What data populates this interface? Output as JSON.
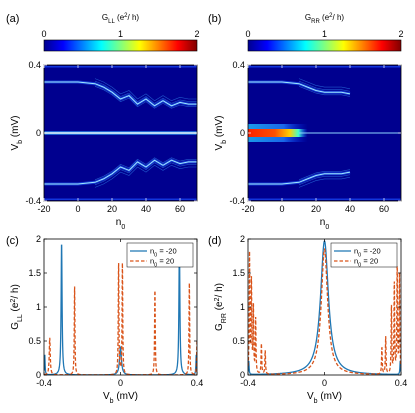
{
  "chart_data": [
    {
      "id": "a",
      "type": "heatmap",
      "panel_label": "(a)",
      "colorbar_label_main": "G",
      "colorbar_label_sub": "LL",
      "colorbar_label_unit": " (e",
      "colorbar_label_sup": "2",
      "colorbar_label_tail": "/ h)",
      "colorbar_ticks": [
        "0",
        "1",
        "2"
      ],
      "colorbar_range": [
        0,
        2
      ],
      "xlabel_main": "n",
      "xlabel_sub": "0",
      "ylabel_main": "V",
      "ylabel_sub": "b",
      "ylabel_unit": " (mV)",
      "xlim": [
        -20,
        70
      ],
      "ylim": [
        -0.4,
        0.4
      ],
      "xticks": [
        "-20",
        "0",
        "20",
        "40",
        "60"
      ],
      "xtick_values": [
        -20,
        0,
        20,
        40,
        60
      ],
      "yticks": [
        "0.4",
        "0",
        "-0.4"
      ],
      "ytick_values": [
        0.4,
        0,
        -0.4
      ],
      "features": {
        "zero_bias_line": {
          "y": 0,
          "x_range": [
            -20,
            70
          ]
        },
        "upper_band": {
          "x": [
            -20,
            0,
            10,
            15,
            20,
            25,
            30,
            35,
            40,
            45,
            50,
            55,
            60,
            65,
            70
          ],
          "y": [
            0.3,
            0.3,
            0.29,
            0.27,
            0.24,
            0.2,
            0.22,
            0.17,
            0.2,
            0.16,
            0.19,
            0.16,
            0.18,
            0.17,
            0.17
          ]
        },
        "lower_band": {
          "x": [
            -20,
            0,
            10,
            15,
            20,
            25,
            30,
            35,
            40,
            45,
            50,
            55,
            60,
            65,
            70
          ],
          "y": [
            -0.3,
            -0.3,
            -0.29,
            -0.27,
            -0.24,
            -0.2,
            -0.22,
            -0.17,
            -0.2,
            -0.16,
            -0.19,
            -0.16,
            -0.18,
            -0.17,
            -0.17
          ]
        }
      }
    },
    {
      "id": "b",
      "type": "heatmap",
      "panel_label": "(b)",
      "colorbar_label_main": "G",
      "colorbar_label_sub": "RR",
      "colorbar_label_unit": " (e",
      "colorbar_label_sup": "2",
      "colorbar_label_tail": "/ h)",
      "colorbar_ticks": [
        "0",
        "1",
        "2"
      ],
      "colorbar_range": [
        0,
        2
      ],
      "xlabel_main": "n",
      "xlabel_sub": "0",
      "ylabel_main": "V",
      "ylabel_sub": "b",
      "ylabel_unit": " (mV)",
      "xlim": [
        -20,
        70
      ],
      "ylim": [
        -0.4,
        0.4
      ],
      "xticks": [
        "-20",
        "0",
        "20",
        "40",
        "60"
      ],
      "xtick_values": [
        -20,
        0,
        20,
        40,
        60
      ],
      "yticks": [
        "0.4",
        "0",
        "-0.4"
      ],
      "ytick_values": [
        0.4,
        0,
        -0.4
      ],
      "features": {
        "zero_bias_peak": {
          "y": 0,
          "x_range": [
            -20,
            10
          ],
          "peak_value": 2.0
        },
        "zero_bias_line": {
          "y": 0,
          "x_range": [
            10,
            70
          ]
        },
        "upper_band": {
          "x": [
            -20,
            0,
            10,
            15,
            20,
            25,
            30,
            35,
            40
          ],
          "y": [
            0.3,
            0.3,
            0.29,
            0.27,
            0.25,
            0.24,
            0.24,
            0.24,
            0.23
          ]
        },
        "lower_band": {
          "x": [
            -20,
            0,
            10,
            15,
            20,
            25,
            30,
            35,
            40
          ],
          "y": [
            -0.3,
            -0.3,
            -0.29,
            -0.27,
            -0.25,
            -0.24,
            -0.24,
            -0.24,
            -0.23
          ]
        }
      }
    },
    {
      "id": "c",
      "type": "line",
      "panel_label": "(c)",
      "xlabel_main": "V",
      "xlabel_sub": "b",
      "xlabel_unit": " (mV)",
      "ylabel_main": "G",
      "ylabel_sub": "LL",
      "ylabel_unit": " (e",
      "ylabel_sup": "2",
      "ylabel_tail": "/ h)",
      "xlim": [
        -0.4,
        0.4
      ],
      "ylim": [
        0,
        2
      ],
      "xticks": [
        "-0.4",
        "0",
        "0.4"
      ],
      "xtick_values": [
        -0.4,
        0,
        0.4
      ],
      "yticks": [
        "0",
        "0.5",
        "1",
        "1.5",
        "2"
      ],
      "ytick_values": [
        0,
        0.5,
        1,
        1.5,
        2
      ],
      "legend_position": "top-right",
      "series": [
        {
          "name_main": "n",
          "name_sub": "0",
          "name_tail": " = -20",
          "color": "#1f77b4",
          "dash": "solid",
          "peaks": [
            {
              "x": -0.396,
              "h": 0.3,
              "w": 0.002
            },
            {
              "x": -0.308,
              "h": 1.95,
              "w": 0.003
            },
            {
              "x": 0.0,
              "h": 0.4,
              "w": 0.006
            },
            {
              "x": 0.308,
              "h": 1.95,
              "w": 0.003
            },
            {
              "x": 0.396,
              "h": 0.3,
              "w": 0.002
            }
          ],
          "baseline": 0.0
        },
        {
          "name_main": "n",
          "name_sub": "0",
          "name_tail": " = 20",
          "color": "#d95319",
          "dash": "dash",
          "peaks": [
            {
              "x": -0.37,
              "h": 0.55,
              "w": 0.003
            },
            {
              "x": -0.24,
              "h": 1.3,
              "w": 0.002
            },
            {
              "x": -0.01,
              "h": 1.65,
              "w": 0.002
            },
            {
              "x": 0.01,
              "h": 1.65,
              "w": 0.002
            },
            {
              "x": 0.18,
              "h": 1.3,
              "w": 0.002
            },
            {
              "x": 0.36,
              "h": 1.35,
              "w": 0.002
            },
            {
              "x": 0.4,
              "h": 0.5,
              "w": 0.002
            }
          ],
          "baseline": 0.0
        }
      ]
    },
    {
      "id": "d",
      "type": "line",
      "panel_label": "(d)",
      "xlabel_main": "V",
      "xlabel_sub": "b",
      "xlabel_unit": " (mV)",
      "ylabel_main": "G",
      "ylabel_sub": "RR",
      "ylabel_unit": " (e",
      "ylabel_sup": "2",
      "ylabel_tail": "/ h)",
      "xlim": [
        -0.4,
        0.4
      ],
      "ylim": [
        0,
        2
      ],
      "xticks": [
        "-0.4",
        "0",
        "0.4"
      ],
      "xtick_values": [
        -0.4,
        0,
        0.4
      ],
      "yticks": [
        "0",
        "0.5",
        "1",
        "1.5",
        "2"
      ],
      "ytick_values": [
        0,
        0.5,
        1,
        1.5,
        2
      ],
      "legend_position": "top-right",
      "series": [
        {
          "name_main": "n",
          "name_sub": "0",
          "name_tail": " = -20",
          "color": "#1f77b4",
          "dash": "solid",
          "peaks": [
            {
              "x": 0.0,
              "h": 1.97,
              "w": 0.025
            },
            {
              "x": -0.396,
              "h": 0.2,
              "w": 0.002
            },
            {
              "x": 0.396,
              "h": 0.2,
              "w": 0.002
            }
          ],
          "baseline": 0.0
        },
        {
          "name_main": "n",
          "name_sub": "0",
          "name_tail": " = 20",
          "color": "#d95319",
          "dash": "dash",
          "peaks": [
            {
              "x": -0.392,
              "h": 1.75,
              "w": 0.002
            },
            {
              "x": -0.382,
              "h": 1.35,
              "w": 0.002
            },
            {
              "x": -0.372,
              "h": 1.0,
              "w": 0.002
            },
            {
              "x": -0.36,
              "h": 0.8,
              "w": 0.002
            },
            {
              "x": -0.33,
              "h": 0.45,
              "w": 0.002
            },
            {
              "x": -0.31,
              "h": 0.35,
              "w": 0.002
            },
            {
              "x": 0.0,
              "h": 1.85,
              "w": 0.02
            },
            {
              "x": 0.3,
              "h": 0.4,
              "w": 0.002
            },
            {
              "x": 0.32,
              "h": 0.55,
              "w": 0.002
            },
            {
              "x": 0.35,
              "h": 1.0,
              "w": 0.002
            },
            {
              "x": 0.365,
              "h": 1.35,
              "w": 0.002
            },
            {
              "x": 0.38,
              "h": 1.6,
              "w": 0.002
            },
            {
              "x": 0.392,
              "h": 1.45,
              "w": 0.002
            }
          ],
          "baseline": 0.0
        }
      ]
    }
  ]
}
